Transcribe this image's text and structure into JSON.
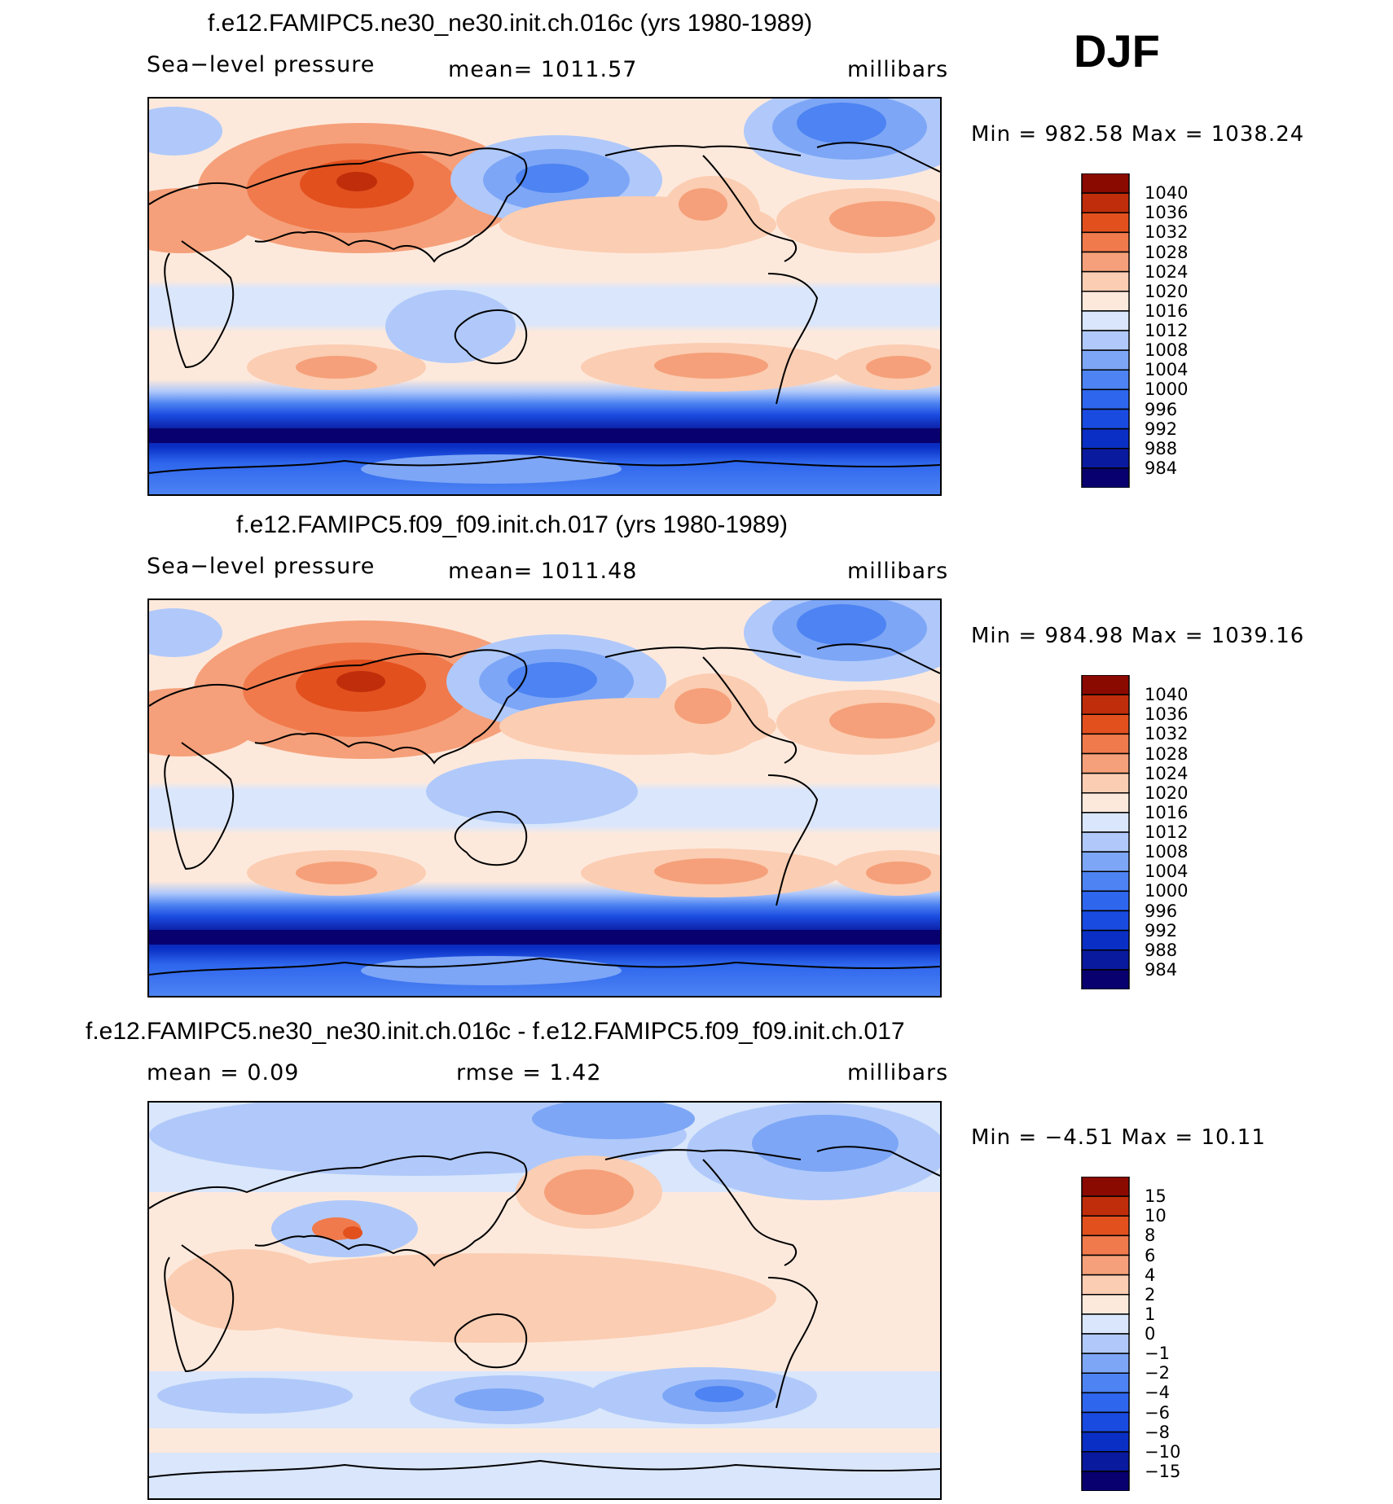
{
  "season": "DJF",
  "panels": [
    {
      "id": "p1",
      "title": "f.e12.FAMIPC5.ne30_ne30.init.ch.016c (yrs 1980-1989)",
      "left_label": "Sea−level pressure",
      "center_label": "mean=  1011.57",
      "units": "millibars",
      "minmax": "Min  =  982.58  Max  =  1038.24",
      "colorbar_labels": [
        "1040",
        "1036",
        "1032",
        "1028",
        "1024",
        "1020",
        "1016",
        "1012",
        "1008",
        "1004",
        "1000",
        "996",
        "992",
        "988",
        "984"
      ]
    },
    {
      "id": "p2",
      "title": "f.e12.FAMIPC5.f09_f09.init.ch.017 (yrs 1980-1989)",
      "left_label": "Sea−level pressure",
      "center_label": "mean=  1011.48",
      "units": "millibars",
      "minmax": "Min  =  984.98  Max  =  1039.16",
      "colorbar_labels": [
        "1040",
        "1036",
        "1032",
        "1028",
        "1024",
        "1020",
        "1016",
        "1012",
        "1008",
        "1004",
        "1000",
        "996",
        "992",
        "988",
        "984"
      ]
    },
    {
      "id": "p3",
      "title": "f.e12.FAMIPC5.ne30_ne30.init.ch.016c - f.e12.FAMIPC5.f09_f09.init.ch.017",
      "left_label": "mean  =      0.09",
      "center_label": "rmse  =      1.42",
      "units": "millibars",
      "minmax": "Min  =     −4.51  Max  =     10.11",
      "colorbar_labels": [
        "15",
        "10",
        "8",
        "6",
        "4",
        "2",
        "1",
        "0",
        "−1",
        "−2",
        "−4",
        "−6",
        "−8",
        "−10",
        "−15"
      ]
    }
  ],
  "colors": {
    "palette": [
      "#08006e",
      "#0a1a9e",
      "#0a2fc4",
      "#1a4be0",
      "#2e66ee",
      "#4d83f2",
      "#7da6f6",
      "#b0c9fa",
      "#d9e6fb",
      "#fde9dc",
      "#fbcdb2",
      "#f5a07a",
      "#f07a4c",
      "#e2501e",
      "#c02d0a",
      "#8b0a00"
    ],
    "land_outline": "#000000"
  }
}
